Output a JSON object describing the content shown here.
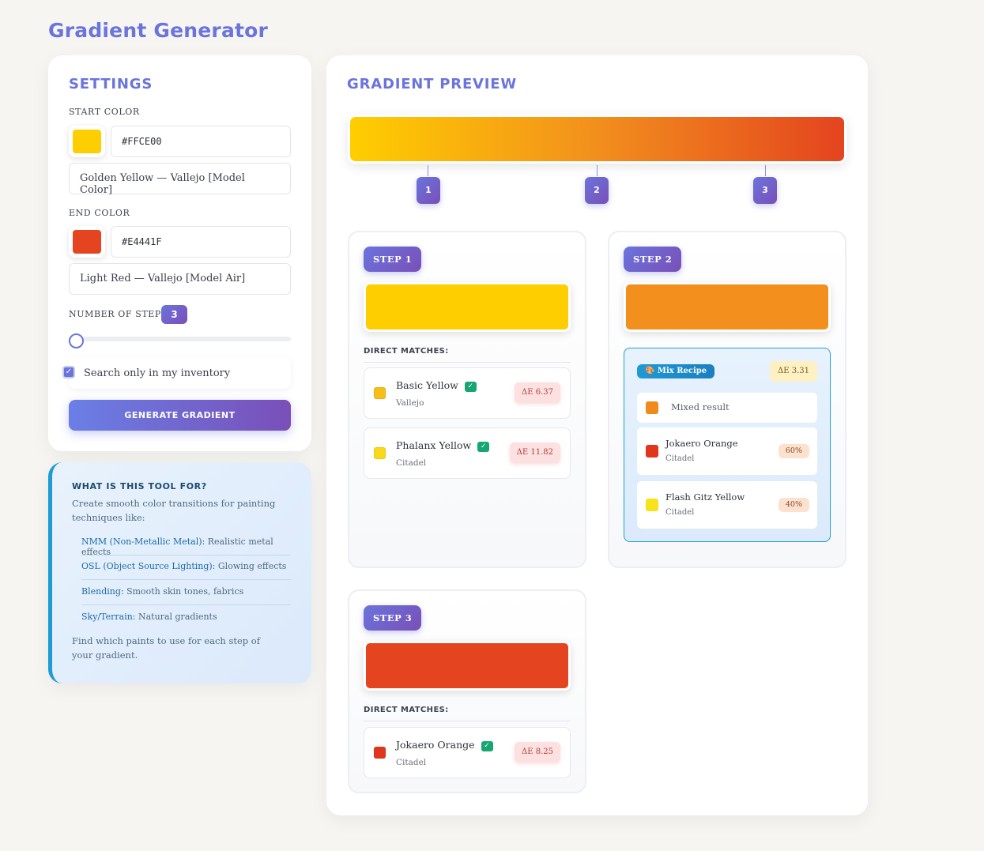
{
  "page": {
    "title": "Gradient Generator"
  },
  "settings": {
    "title": "SETTINGS",
    "start_label": "START COLOR",
    "start_hex": "#FFCE00",
    "start_name": "Golden Yellow — Vallejo [Model Color]",
    "start_color": "#FFCE00",
    "end_label": "END COLOR",
    "end_hex": "#E4441F",
    "end_name": "Light Red — Vallejo [Model Air]",
    "end_color": "#E4441F",
    "steps_label": "NUMBER OF STEPS:",
    "steps_value": "3",
    "inventory_label": "Search only in my inventory",
    "inventory_checked": true,
    "generate_label": "GENERATE GRADIENT"
  },
  "info": {
    "title": "WHAT IS THIS TOOL FOR?",
    "intro": "Create smooth color transitions for painting techniques like:",
    "items": [
      {
        "term": "NMM (Non-Metallic Metal):",
        "desc": " Realistic metal effects"
      },
      {
        "term": "OSL (Object Source Lighting):",
        "desc": " Glowing effects"
      },
      {
        "term": "Blending:",
        "desc": " Smooth skin tones, fabrics"
      },
      {
        "term": "Sky/Terrain:",
        "desc": " Natural gradients"
      }
    ],
    "outro": "Find which paints to use for each step of your gradient."
  },
  "preview": {
    "title": "GRADIENT PREVIEW",
    "markers": [
      "1",
      "2",
      "3"
    ],
    "direct_matches_label": "DIRECT MATCHES:",
    "steps": [
      {
        "label": "STEP 1",
        "color": "#FFCE00",
        "matches": [
          {
            "name": "Basic Yellow",
            "brand": "Vallejo",
            "delta": "ΔE 6.37",
            "color": "#F7BE1A",
            "owned": "✓"
          },
          {
            "name": "Phalanx Yellow",
            "brand": "Citadel",
            "delta": "ΔE 11.82",
            "color": "#FAD91A",
            "owned": "✓"
          }
        ]
      },
      {
        "label": "STEP 2",
        "color": "#F28F1D",
        "mix": {
          "label": "🎨 Mix Recipe",
          "delta": "ΔE 3.31",
          "result_label": "Mixed result",
          "result_color": "#EF8A1B",
          "components": [
            {
              "name": "Jokaero Orange",
              "brand": "Citadel",
              "pct": "60%",
              "color": "#E2361C"
            },
            {
              "name": "Flash Gitz Yellow",
              "brand": "Citadel",
              "pct": "40%",
              "color": "#F8E21A"
            }
          ]
        }
      },
      {
        "label": "STEP 3",
        "color": "#E4441F",
        "matches": [
          {
            "name": "Jokaero Orange",
            "brand": "Citadel",
            "delta": "ΔE 8.25",
            "color": "#E2361C",
            "owned": "✓"
          }
        ]
      }
    ]
  }
}
